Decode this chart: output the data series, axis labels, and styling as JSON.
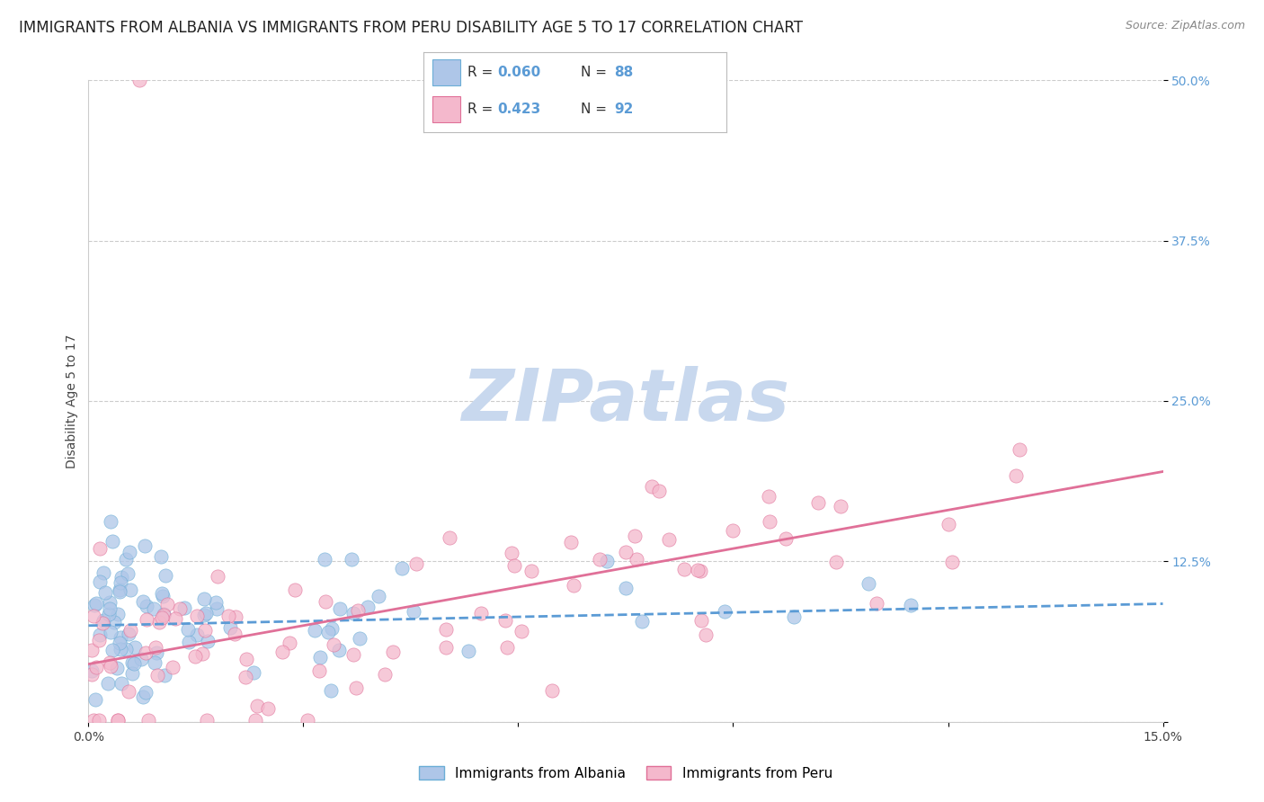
{
  "title": "IMMIGRANTS FROM ALBANIA VS IMMIGRANTS FROM PERU DISABILITY AGE 5 TO 17 CORRELATION CHART",
  "source": "Source: ZipAtlas.com",
  "ylabel": "Disability Age 5 to 17",
  "xlim": [
    0.0,
    0.15
  ],
  "ylim": [
    0.0,
    0.5
  ],
  "xticks": [
    0.0,
    0.03,
    0.06,
    0.09,
    0.12,
    0.15
  ],
  "xticklabels": [
    "0.0%",
    "",
    "",
    "",
    "",
    "15.0%"
  ],
  "yticks": [
    0.0,
    0.125,
    0.25,
    0.375,
    0.5
  ],
  "yticklabels": [
    "",
    "12.5%",
    "25.0%",
    "37.5%",
    "50.0%"
  ],
  "albania_fill_color": "#aec6e8",
  "albania_edge_color": "#6baed6",
  "peru_fill_color": "#f4b8cc",
  "peru_edge_color": "#e07098",
  "albania_line_color": "#5b9bd5",
  "peru_line_color": "#e07098",
  "tick_label_color": "#5b9bd5",
  "background_color": "#ffffff",
  "grid_color": "#cccccc",
  "watermark_color": "#c8d8ee",
  "legend_label_albania": "Immigrants from Albania",
  "legend_label_peru": "Immigrants from Peru",
  "title_fontsize": 12,
  "axis_label_fontsize": 10,
  "tick_fontsize": 10,
  "legend_fontsize": 11,
  "alb_trend_y0": 0.075,
  "alb_trend_y1": 0.092,
  "peru_trend_y0": 0.045,
  "peru_trend_y1": 0.195
}
